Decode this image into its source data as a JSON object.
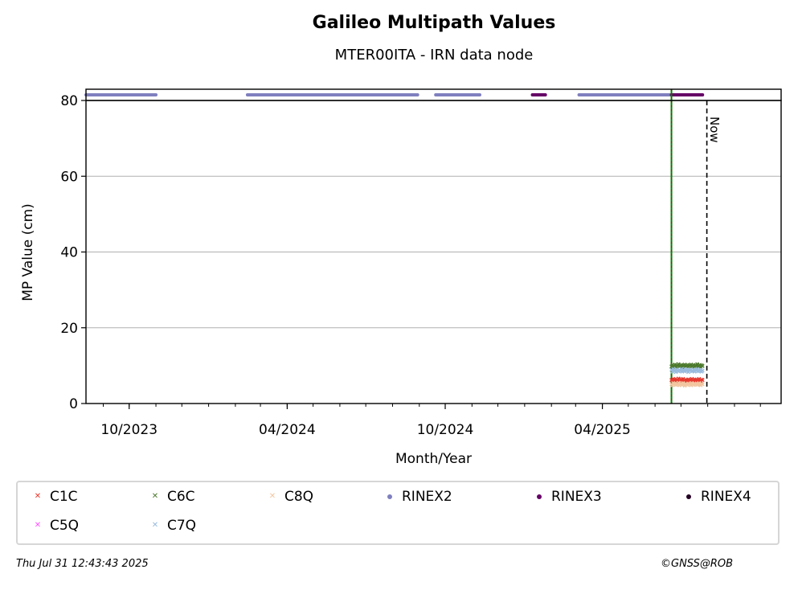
{
  "chart_data": {
    "type": "scatter",
    "title": "Galileo Multipath Values",
    "subtitle": "MTER00ITA - IRN data node",
    "xlabel": "Month/Year",
    "ylabel": "MP Value (cm)",
    "xlim": [
      "2023-08-12",
      "2025-10-25"
    ],
    "ylim": [
      0,
      80
    ],
    "y_ticks": [
      0,
      20,
      40,
      60,
      80
    ],
    "x_ticks": [
      {
        "date": "2023-10-01",
        "label": "10/2023"
      },
      {
        "date": "2024-04-01",
        "label": "04/2024"
      },
      {
        "date": "2024-10-01",
        "label": "10/2024"
      },
      {
        "date": "2025-04-01",
        "label": "04/2025"
      }
    ],
    "grid": "y",
    "now_label": "Now",
    "now_date": "2025-07-31",
    "data_start_date": "2025-06-20",
    "legend_placement": "bottom",
    "rinex_bars": [
      {
        "name": "RINEX2",
        "color": "#7f7fbf",
        "start": "2023-08-12",
        "end": "2023-11-01"
      },
      {
        "name": "RINEX2",
        "color": "#7f7fbf",
        "start": "2024-02-15",
        "end": "2024-08-30"
      },
      {
        "name": "RINEX2",
        "color": "#7f7fbf",
        "start": "2024-09-20",
        "end": "2024-11-10"
      },
      {
        "name": "RINEX3",
        "color": "#660066",
        "start": "2025-01-10",
        "end": "2025-01-25"
      },
      {
        "name": "RINEX2",
        "color": "#7f7fbf",
        "start": "2025-03-05",
        "end": "2025-06-20"
      },
      {
        "name": "RINEX3",
        "color": "#660066",
        "start": "2025-06-20",
        "end": "2025-07-26"
      }
    ],
    "series": [
      {
        "name": "C1C",
        "color": "#e6382e",
        "marker": "x",
        "start": "2025-06-20",
        "end": "2025-07-26",
        "values": [
          6.2,
          5.8,
          6.5,
          6.0,
          6.4,
          5.9,
          6.3,
          6.1,
          6.6,
          5.9,
          6.2,
          6.4,
          6.0,
          6.5,
          6.1,
          5.8,
          6.3,
          6.2,
          6.0,
          6.4,
          6.1,
          6.3,
          5.9,
          6.5,
          6.2,
          6.0,
          6.4,
          6.1,
          6.3,
          6.0,
          6.2,
          6.5,
          6.1,
          5.9,
          6.3,
          6.2
        ]
      },
      {
        "name": "C5Q",
        "color": "#ff55ff",
        "marker": "x",
        "start": "2025-06-20",
        "end": "2025-07-26",
        "values": []
      },
      {
        "name": "C6C",
        "color": "#4c7a2e",
        "marker": "x",
        "start": "2025-06-20",
        "end": "2025-07-26",
        "values": [
          9.8,
          10.2,
          9.6,
          10.0,
          10.3,
          9.7,
          10.1,
          9.9,
          10.4,
          9.8,
          10.0,
          10.2,
          9.6,
          10.1,
          9.9,
          10.3,
          9.8,
          10.0,
          10.2,
          9.7,
          10.1,
          9.9,
          10.3,
          9.8,
          10.0,
          10.2,
          9.7,
          10.1,
          9.9,
          10.4,
          9.8,
          10.0,
          10.2,
          9.6,
          10.1,
          9.9
        ]
      },
      {
        "name": "C7Q",
        "color": "#99bbdd",
        "marker": "x",
        "start": "2025-06-20",
        "end": "2025-07-26",
        "values": [
          8.9,
          8.4,
          9.1,
          8.6,
          8.8,
          8.3,
          9.0,
          8.7,
          8.5,
          8.9,
          8.6,
          9.1,
          8.4,
          8.8,
          8.7,
          8.5,
          9.0,
          8.6,
          8.9,
          8.3,
          8.8,
          8.7,
          9.0,
          8.5,
          8.6,
          8.9,
          8.4,
          8.8,
          8.7,
          9.1,
          8.5,
          8.8,
          8.6,
          8.9,
          8.4,
          8.7
        ]
      },
      {
        "name": "C8Q",
        "color": "#f2c6a0",
        "marker": "x",
        "start": "2025-06-20",
        "end": "2025-07-26",
        "values": [
          5.1,
          4.8,
          5.4,
          5.0,
          5.3,
          4.9,
          5.2,
          5.0,
          5.5,
          4.8,
          5.1,
          5.3,
          4.9,
          5.4,
          5.0,
          4.7,
          5.2,
          5.1,
          4.9,
          5.3,
          5.0,
          5.2,
          4.8,
          5.4,
          5.1,
          4.9,
          5.3,
          5.0,
          5.2,
          4.9,
          5.1,
          5.4,
          5.0,
          4.8,
          5.2,
          5.1
        ]
      }
    ],
    "legend": [
      {
        "label": "C1C",
        "color": "#e6382e",
        "marker": "x"
      },
      {
        "label": "C6C",
        "color": "#4c7a2e",
        "marker": "x"
      },
      {
        "label": "C8Q",
        "color": "#f2c6a0",
        "marker": "x"
      },
      {
        "label": "RINEX2",
        "color": "#7f7fbf",
        "marker": "dot"
      },
      {
        "label": "RINEX3",
        "color": "#660066",
        "marker": "dot"
      },
      {
        "label": "RINEX4",
        "color": "#220022",
        "marker": "dot"
      },
      {
        "label": "C5Q",
        "color": "#ff55ff",
        "marker": "x"
      },
      {
        "label": "C7Q",
        "color": "#99bbdd",
        "marker": "x"
      }
    ]
  },
  "footer": {
    "timestamp": "Thu Jul 31 12:43:43 2025",
    "copyright": "©GNSS@ROB"
  }
}
